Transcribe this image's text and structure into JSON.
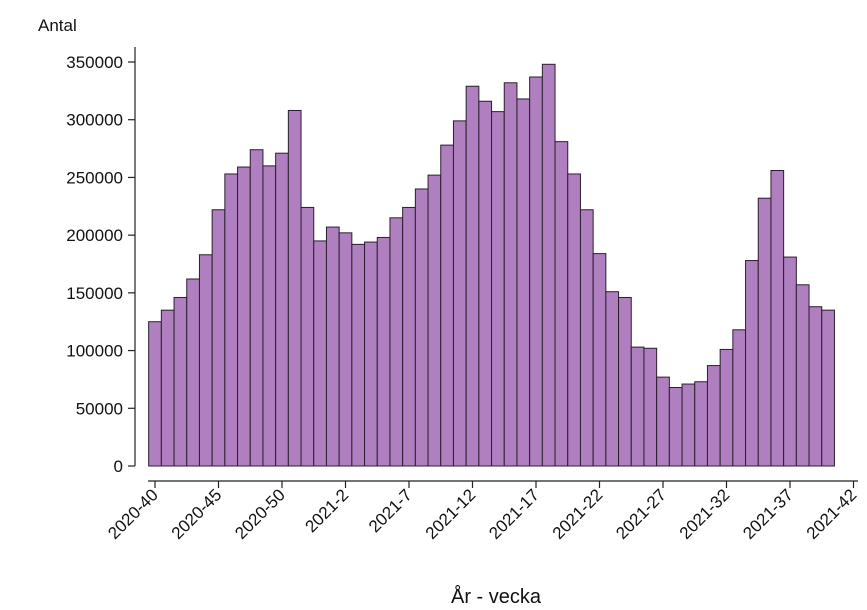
{
  "chart_data": {
    "type": "bar",
    "y_label": "Antal",
    "x_label": "År - vecka",
    "categories": [
      "2020-40",
      null,
      null,
      null,
      null,
      "2020-45",
      null,
      null,
      null,
      null,
      "2020-50",
      null,
      null,
      null,
      null,
      "2021-2",
      null,
      null,
      null,
      null,
      "2021-7",
      null,
      null,
      null,
      null,
      "2021-12",
      null,
      null,
      null,
      null,
      "2021-17",
      null,
      null,
      null,
      null,
      "2021-22",
      null,
      null,
      null,
      null,
      "2021-27",
      null,
      null,
      null,
      null,
      "2021-32",
      null,
      null,
      null,
      null,
      "2021-37",
      null,
      null,
      null,
      null,
      "2021-42"
    ],
    "values": [
      125000,
      135000,
      146000,
      162000,
      183000,
      222000,
      253000,
      259000,
      274000,
      260000,
      271000,
      308000,
      224000,
      195000,
      207000,
      202000,
      192000,
      194000,
      198000,
      215000,
      224000,
      240000,
      252000,
      278000,
      299000,
      329000,
      316000,
      307000,
      332000,
      318000,
      337000,
      348000,
      281000,
      253000,
      222000,
      184000,
      151000,
      146000,
      103000,
      102000,
      77000,
      68000,
      71000,
      73000,
      87000,
      101000,
      118000,
      178000,
      232000,
      256000,
      181000,
      157000,
      138000,
      135000,
      null,
      null
    ],
    "color": "#b07fc0",
    "ylim": [
      0,
      350000
    ],
    "yticks": [
      0,
      50000,
      100000,
      150000,
      200000,
      250000,
      300000,
      350000
    ]
  }
}
